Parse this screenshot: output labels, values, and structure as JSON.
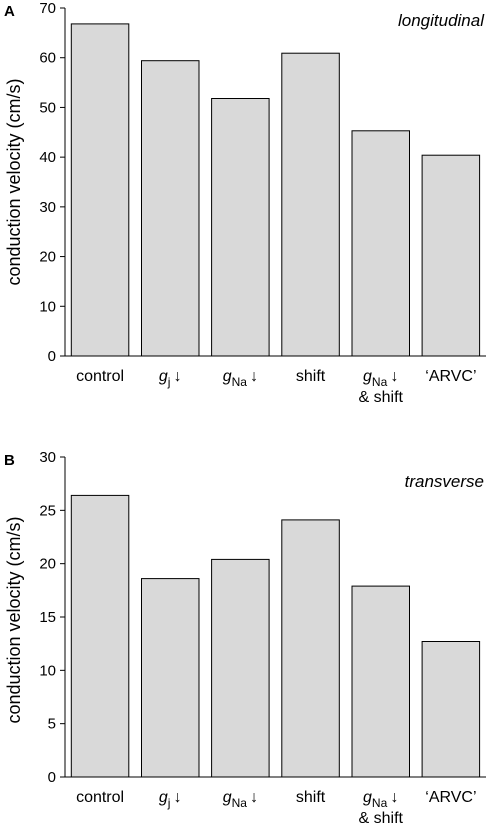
{
  "chart_data": [
    {
      "type": "bar",
      "panel": "A",
      "title": "longitudinal",
      "ylabel": "conduction velocity (cm/s)",
      "ylim": [
        0,
        70
      ],
      "yticks": [
        0,
        10,
        20,
        30,
        40,
        50,
        60,
        70
      ],
      "categories": [
        {
          "main": "control",
          "sub": "",
          "suffix": "",
          "line2": ""
        },
        {
          "main": "g",
          "sub": "j",
          "suffix": "↓",
          "line2": ""
        },
        {
          "main": "g",
          "sub": "Na",
          "suffix": "↓",
          "line2": ""
        },
        {
          "main": "shift",
          "sub": "",
          "suffix": "",
          "line2": ""
        },
        {
          "main": "g",
          "sub": "Na",
          "suffix": "↓",
          "line2": "& shift"
        },
        {
          "main": "‘ARVC’",
          "sub": "",
          "suffix": "",
          "line2": ""
        }
      ],
      "values": [
        66.8,
        59.4,
        51.8,
        60.9,
        45.3,
        40.4
      ]
    },
    {
      "type": "bar",
      "panel": "B",
      "title": "transverse",
      "ylabel": "conduction velocity (cm/s)",
      "ylim": [
        0,
        30
      ],
      "yticks": [
        0,
        5,
        10,
        15,
        20,
        25,
        30
      ],
      "categories": [
        {
          "main": "control",
          "sub": "",
          "suffix": "",
          "line2": ""
        },
        {
          "main": "g",
          "sub": "j",
          "suffix": "↓",
          "line2": ""
        },
        {
          "main": "g",
          "sub": "Na",
          "suffix": "↓",
          "line2": ""
        },
        {
          "main": "shift",
          "sub": "",
          "suffix": "",
          "line2": ""
        },
        {
          "main": "g",
          "sub": "Na",
          "suffix": "↓",
          "line2": "& shift"
        },
        {
          "main": "‘ARVC’",
          "sub": "",
          "suffix": "",
          "line2": ""
        }
      ],
      "values": [
        26.4,
        18.6,
        20.4,
        24.1,
        17.9,
        12.7
      ]
    }
  ]
}
